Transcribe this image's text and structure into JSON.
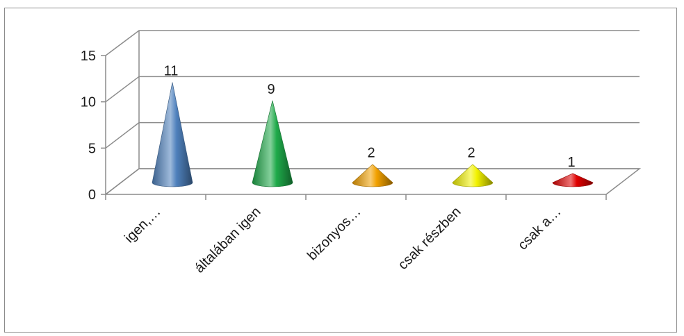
{
  "chart_data": {
    "type": "bar",
    "style": "3d-cone",
    "categories": [
      "igen,…",
      "általában igen",
      "bizonyos…",
      "csak részben",
      "csak a…"
    ],
    "values": [
      11,
      9,
      2,
      2,
      1
    ],
    "data_labels": [
      "11",
      "9",
      "2",
      "2",
      "1"
    ],
    "colors": [
      "#4f81bd",
      "#1faa4a",
      "#f2a100",
      "#f2f200",
      "#e00000"
    ],
    "ylim": [
      0,
      15
    ],
    "yticks": [
      0,
      5,
      10,
      15
    ],
    "ytick_labels": [
      "0",
      "5",
      "10",
      "15"
    ],
    "grid": true,
    "legend": false,
    "title": "",
    "xlabel": "",
    "ylabel": ""
  }
}
